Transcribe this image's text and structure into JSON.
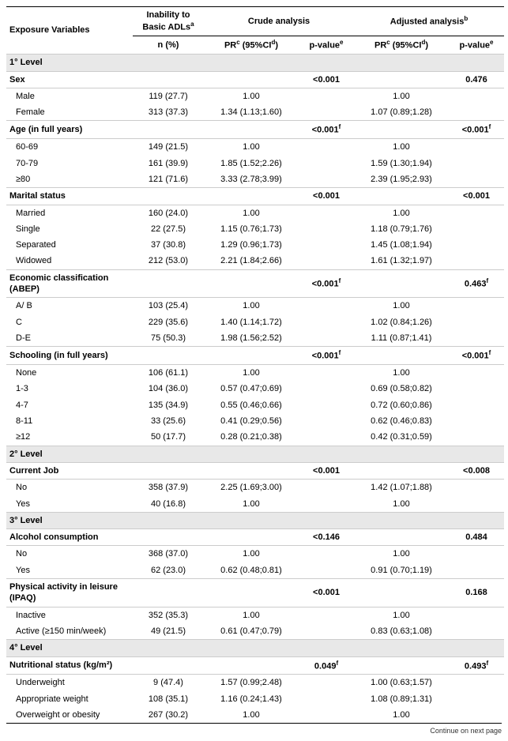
{
  "headers": {
    "exposure": "Exposure Variables",
    "inability_line1": "Inability to",
    "inability_line2": "Basic ADLs",
    "crude": "Crude analysis",
    "adjusted": "Adjusted analysis",
    "n_pct": "n (%)",
    "pr_ci": "PR",
    "ci_part": " (95%CI",
    "pvalue": "p-value",
    "sup_a": "a",
    "sup_b": "b",
    "sup_c": "c",
    "sup_d": "d",
    "sup_e": "e",
    "footnote": "Continue on next page"
  },
  "rows": [
    {
      "type": "section",
      "label": "1° Level"
    },
    {
      "type": "var",
      "label": "Sex",
      "p_crude": "<0.001",
      "p_adj": "0.476"
    },
    {
      "type": "cat",
      "label": "Male",
      "n": "119 (27.7)",
      "pr_c": "1.00",
      "pr_a": "1.00"
    },
    {
      "type": "cat",
      "label": "Female",
      "n": "313 (37.3)",
      "pr_c": "1.34 (1.13;1.60)",
      "pr_a": "1.07 (0.89;1.28)"
    },
    {
      "type": "var",
      "label": "Age (in full years)",
      "p_crude": "<0.001",
      "p_adj": "<0.001",
      "sup": "f"
    },
    {
      "type": "cat",
      "label": "60-69",
      "n": "149 (21.5)",
      "pr_c": "1.00",
      "pr_a": "1.00"
    },
    {
      "type": "cat",
      "label": "70-79",
      "n": "161 (39.9)",
      "pr_c": "1.85 (1.52;2.26)",
      "pr_a": "1.59 (1.30;1.94)"
    },
    {
      "type": "cat",
      "label": "≥80",
      "n": "121 (71.6)",
      "pr_c": "3.33 (2.78;3.99)",
      "pr_a": "2.39 (1.95;2.93)"
    },
    {
      "type": "var",
      "label": "Marital status",
      "p_crude": "<0.001",
      "p_adj": "<0.001"
    },
    {
      "type": "cat",
      "label": "Married",
      "n": "160 (24.0)",
      "pr_c": "1.00",
      "pr_a": "1.00"
    },
    {
      "type": "cat",
      "label": "Single",
      "n": "22 (27.5)",
      "pr_c": "1.15 (0.76;1.73)",
      "pr_a": "1.18 (0.79;1.76)"
    },
    {
      "type": "cat",
      "label": "Separated",
      "n": "37 (30.8)",
      "pr_c": "1.29 (0.96;1.73)",
      "pr_a": "1.45 (1.08;1.94)"
    },
    {
      "type": "cat",
      "label": "Widowed",
      "n": "212 (53.0)",
      "pr_c": "2.21 (1.84;2.66)",
      "pr_a": "1.61 (1.32;1.97)"
    },
    {
      "type": "var",
      "label": "Economic classification (ABEP)",
      "p_crude": "<0.001",
      "p_adj": "0.463",
      "sup": "f"
    },
    {
      "type": "cat",
      "label": "A/ B",
      "n": "103 (25.4)",
      "pr_c": "1.00",
      "pr_a": "1.00"
    },
    {
      "type": "cat",
      "label": "C",
      "n": "229 (35.6)",
      "pr_c": "1.40 (1.14;1.72)",
      "pr_a": "1.02 (0.84;1.26)"
    },
    {
      "type": "cat",
      "label": "D-E",
      "n": "75 (50.3)",
      "pr_c": "1.98 (1.56;2.52)",
      "pr_a": "1.11 (0.87;1.41)"
    },
    {
      "type": "var",
      "label": "Schooling (in full years)",
      "p_crude": "<0.001",
      "p_adj": "<0.001",
      "sup": "f"
    },
    {
      "type": "cat",
      "label": "None",
      "n": "106 (61.1)",
      "pr_c": "1.00",
      "pr_a": "1.00"
    },
    {
      "type": "cat",
      "label": "1-3",
      "n": "104 (36.0)",
      "pr_c": "0.57 (0.47;0.69)",
      "pr_a": "0.69 (0.58;0.82)"
    },
    {
      "type": "cat",
      "label": "4-7",
      "n": "135 (34.9)",
      "pr_c": "0.55 (0.46;0.66)",
      "pr_a": "0.72 (0.60;0.86)"
    },
    {
      "type": "cat",
      "label": "8-11",
      "n": "33 (25.6)",
      "pr_c": "0.41 (0.29;0.56)",
      "pr_a": "0.62 (0.46;0.83)"
    },
    {
      "type": "cat",
      "label": "≥12",
      "n": "50 (17.7)",
      "pr_c": "0.28 (0.21;0.38)",
      "pr_a": "0.42 (0.31;0.59)"
    },
    {
      "type": "section",
      "label": "2° Level"
    },
    {
      "type": "var",
      "label": "Current Job",
      "p_crude": "<0.001",
      "p_adj": "<0.008"
    },
    {
      "type": "cat",
      "label": "No",
      "n": "358 (37.9)",
      "pr_c": "2.25 (1.69;3.00)",
      "pr_a": "1.42 (1.07;1.88)"
    },
    {
      "type": "cat",
      "label": "Yes",
      "n": "40 (16.8)",
      "pr_c": "1.00",
      "pr_a": "1.00"
    },
    {
      "type": "section",
      "label": "3° Level"
    },
    {
      "type": "var",
      "label": "Alcohol consumption",
      "p_crude": "<0.146",
      "p_adj": "0.484"
    },
    {
      "type": "cat",
      "label": "No",
      "n": "368 (37.0)",
      "pr_c": "1.00",
      "pr_a": "1.00"
    },
    {
      "type": "cat",
      "label": "Yes",
      "n": "62 (23.0)",
      "pr_c": "0.62 (0.48;0.81)",
      "pr_a": "0.91 (0.70;1.19)"
    },
    {
      "type": "var",
      "label": "Physical activity in leisure (IPAQ)",
      "p_crude": "<0.001",
      "p_adj": "0.168"
    },
    {
      "type": "cat",
      "label": "Inactive",
      "n": "352 (35.3)",
      "pr_c": "1.00",
      "pr_a": "1.00"
    },
    {
      "type": "cat",
      "label": "Active (≥150 min/week)",
      "n": "49 (21.5)",
      "pr_c": "0.61 (0.47;0.79)",
      "pr_a": "0.83 (0.63;1.08)"
    },
    {
      "type": "section",
      "label": "4° Level"
    },
    {
      "type": "var",
      "label": "Nutritional status (kg/m²)",
      "p_crude": "0.049",
      "p_adj": "0.493",
      "sup": "f"
    },
    {
      "type": "cat",
      "label": "Underweight",
      "n": "9 (47.4)",
      "pr_c": "1.57 (0.99;2.48)",
      "pr_a": "1.00 (0.63;1.57)"
    },
    {
      "type": "cat",
      "label": "Appropriate weight",
      "n": "108 (35.1)",
      "pr_c": "1.16 (0.24;1.43)",
      "pr_a": "1.08 (0.89;1.31)"
    },
    {
      "type": "cat",
      "label": "Overweight or obesity",
      "n": "267 (30.2)",
      "pr_c": "1.00",
      "pr_a": "1.00"
    }
  ]
}
